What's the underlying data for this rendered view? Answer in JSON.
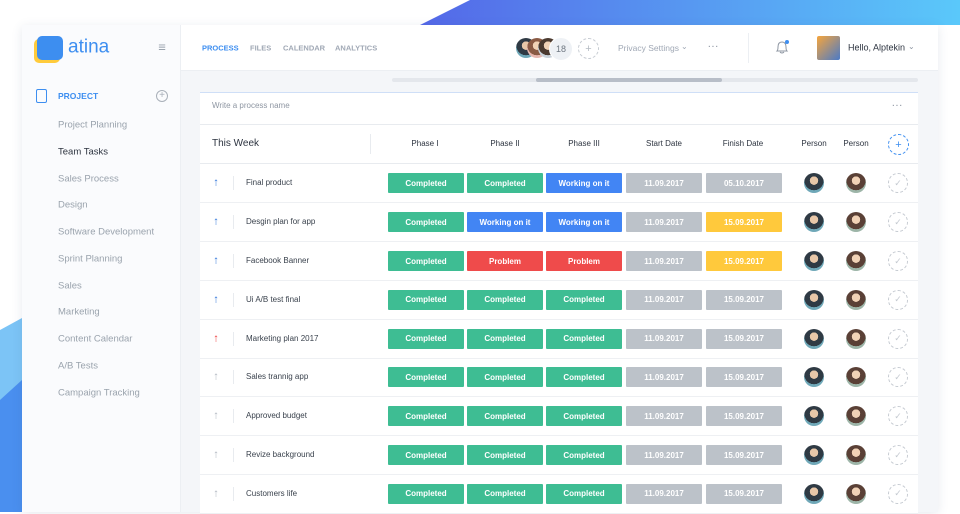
{
  "brand": "atina",
  "sidebar": {
    "section": "PROJECT",
    "active": 1,
    "items": [
      "Project Planning",
      "Team Tasks",
      "Sales Process",
      "Design",
      "Software Development",
      "Sprint Planning",
      "Sales",
      "Marketing",
      "Content Calendar",
      "A/B Tests",
      "Campaign Tracking"
    ]
  },
  "nav": {
    "active": 0,
    "items": [
      "PROCESS",
      "FILES",
      "CALENDAR",
      "ANALYTICS"
    ]
  },
  "member_count": 18,
  "privacy": "Privacy Settings",
  "greeting": "Hello, Alptekin",
  "input_placeholder": "Write a process name",
  "status_colors": {
    "Completed": "#3ebd93",
    "Working on it": "#4285f4",
    "Problem": "#ef4b4b",
    "date": "#bcc2c9",
    "due": "#ffc93c"
  },
  "table": {
    "header": [
      "This Week",
      "Phase I",
      "Phase II",
      "Phase III",
      "Start Date",
      "Finish Date",
      "Person",
      "Person"
    ],
    "rows": [
      {
        "name": "Final product",
        "arrow": "#3b7ddd",
        "phases": [
          "Completed",
          "Completed",
          "Working on it"
        ],
        "start": "11.09.2017",
        "finish": "05.10.2017",
        "finish_color": "#bcc2c9"
      },
      {
        "name": "Desgin plan for app",
        "arrow": "#3b7ddd",
        "phases": [
          "Completed",
          "Working on it",
          "Working on it"
        ],
        "start": "11.09.2017",
        "finish": "15.09.2017",
        "finish_color": "#ffc93c"
      },
      {
        "name": "Facebook Banner",
        "arrow": "#3b7ddd",
        "phases": [
          "Completed",
          "Problem",
          "Problem"
        ],
        "start": "11.09.2017",
        "finish": "15.09.2017",
        "finish_color": "#ffc93c"
      },
      {
        "name": "Ui A/B test final",
        "arrow": "#3b7ddd",
        "phases": [
          "Completed",
          "Completed",
          "Completed"
        ],
        "start": "11.09.2017",
        "finish": "15.09.2017",
        "finish_color": "#bcc2c9"
      },
      {
        "name": "Marketing plan 2017",
        "arrow": "#ef4b4b",
        "phases": [
          "Completed",
          "Completed",
          "Completed"
        ],
        "start": "11.09.2017",
        "finish": "15.09.2017",
        "finish_color": "#bcc2c9"
      },
      {
        "name": "Sales trannig app",
        "arrow": "#b5bbc3",
        "phases": [
          "Completed",
          "Completed",
          "Completed"
        ],
        "start": "11.09.2017",
        "finish": "15.09.2017",
        "finish_color": "#bcc2c9"
      },
      {
        "name": "Approved budget",
        "arrow": "#b5bbc3",
        "phases": [
          "Completed",
          "Completed",
          "Completed"
        ],
        "start": "11.09.2017",
        "finish": "15.09.2017",
        "finish_color": "#bcc2c9"
      },
      {
        "name": "Revize background",
        "arrow": "#b5bbc3",
        "phases": [
          "Completed",
          "Completed",
          "Completed"
        ],
        "start": "11.09.2017",
        "finish": "15.09.2017",
        "finish_color": "#bcc2c9"
      },
      {
        "name": "Customers life",
        "arrow": "#b5bbc3",
        "phases": [
          "Completed",
          "Completed",
          "Completed"
        ],
        "start": "11.09.2017",
        "finish": "15.09.2017",
        "finish_color": "#bcc2c9"
      }
    ]
  }
}
